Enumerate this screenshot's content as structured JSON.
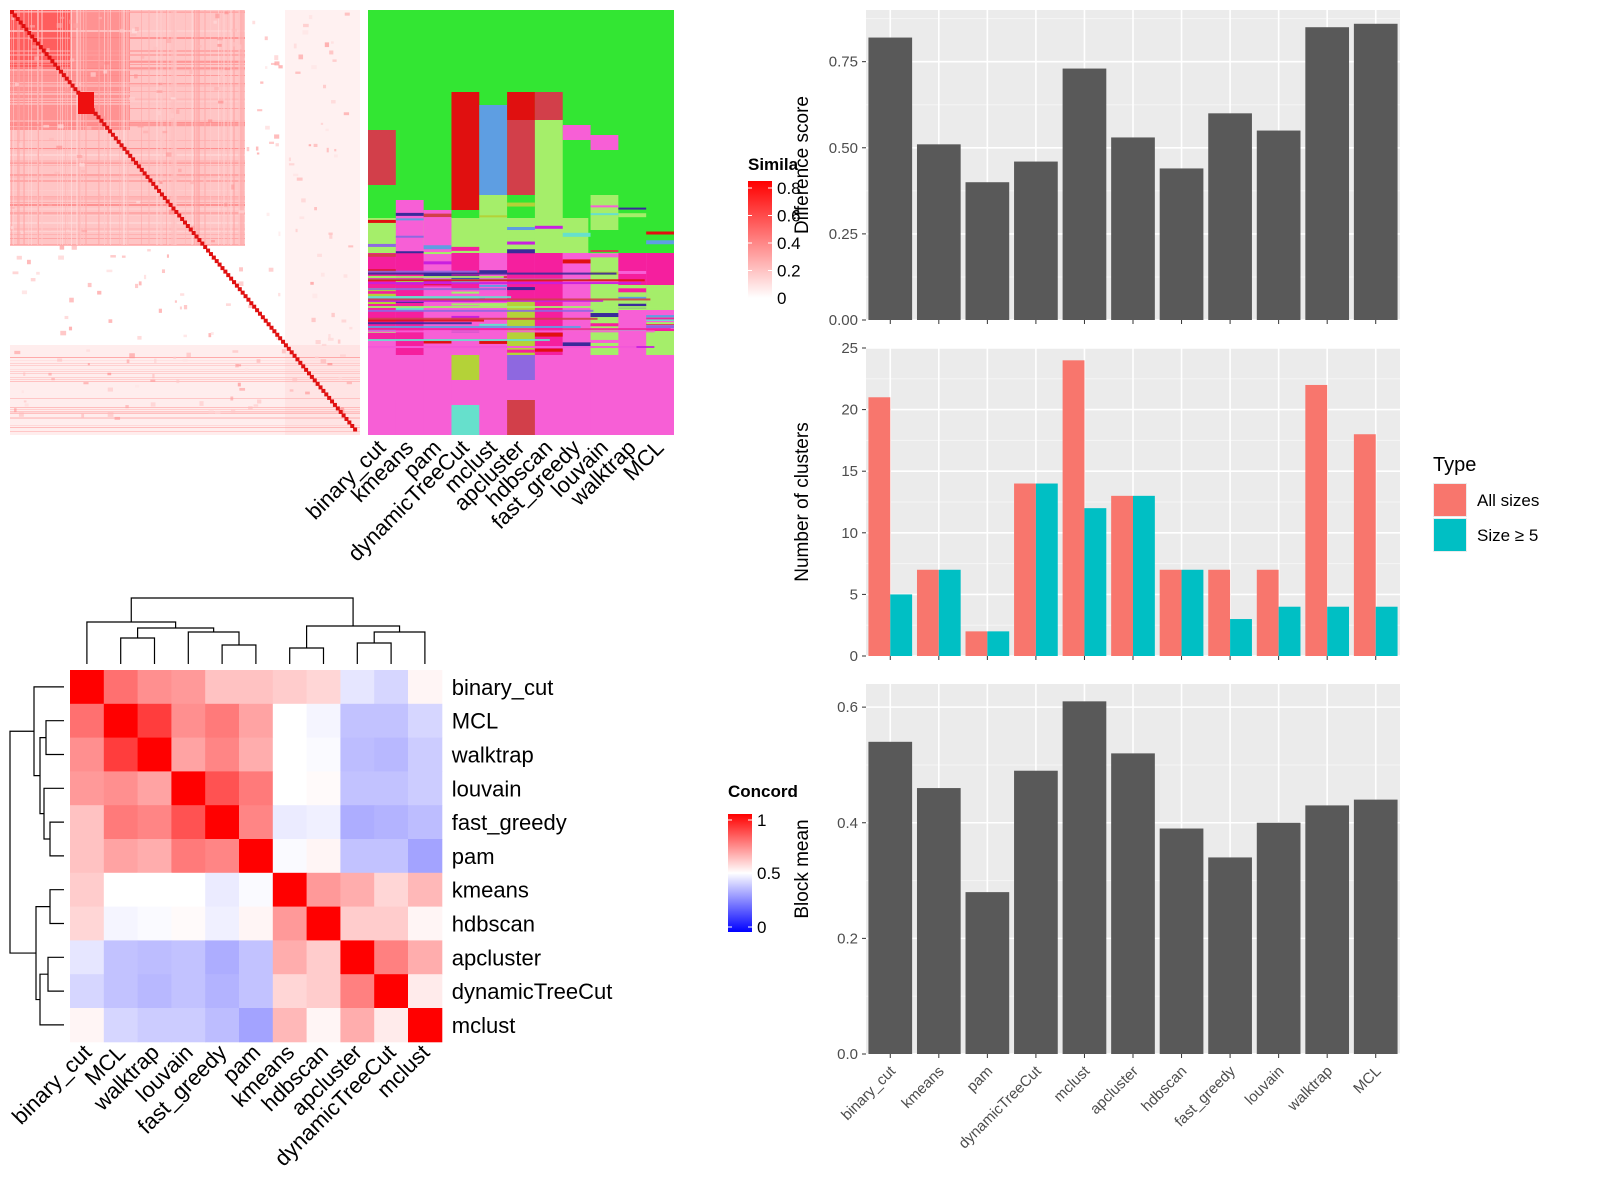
{
  "figure": {
    "panels": [
      "similarity-heatmap",
      "concordance-heatmap",
      "difference-score-bars",
      "number-of-clusters-bars",
      "block-mean-bars"
    ]
  },
  "colors": {
    "heat_red": "#ff0000",
    "bar_gray": "#595959",
    "panel_bg": "#ebebeb",
    "all_sizes": "#f8766d",
    "size_ge_5": "#00bfc4",
    "cluster_green": "#33e633",
    "cluster_pink": "#f75fd6",
    "cluster_magenta": "#f51f9e",
    "cluster_lightgreen": "#a5ee6a",
    "cluster_red": "#d23f4a",
    "cluster_blue": "#5e9ee2",
    "cluster_purple": "#8e68e0",
    "cluster_olive": "#b4d238"
  },
  "similarity": {
    "legend_title": "Simila",
    "legend_ticks": [
      "0.8",
      "0.6",
      "0.4",
      "0.2",
      "0"
    ],
    "methods": [
      "binary_cut",
      "kmeans",
      "pam",
      "dynamicTreeCut",
      "mclust",
      "apcluster",
      "hdbscan",
      "fast_greedy",
      "louvain",
      "walktrap",
      "MCL"
    ]
  },
  "concordance": {
    "legend_title": "Concord",
    "legend_ticks": [
      "1",
      "0.5",
      "0"
    ],
    "methods": [
      "binary_cut",
      "MCL",
      "walktrap",
      "louvain",
      "fast_greedy",
      "pam",
      "kmeans",
      "hdbscan",
      "apcluster",
      "dynamicTreeCut",
      "mclust"
    ]
  },
  "chart_data": [
    {
      "type": "heatmap",
      "title": "",
      "legend_title": "Concord",
      "rows": [
        "binary_cut",
        "MCL",
        "walktrap",
        "louvain",
        "fast_greedy",
        "pam",
        "kmeans",
        "hdbscan",
        "apcluster",
        "dynamicTreeCut",
        "mclust"
      ],
      "cols": [
        "binary_cut",
        "MCL",
        "walktrap",
        "louvain",
        "fast_greedy",
        "pam",
        "kmeans",
        "hdbscan",
        "apcluster",
        "dynamicTreeCut",
        "mclust"
      ],
      "values": [
        [
          1.0,
          0.78,
          0.72,
          0.7,
          0.62,
          0.62,
          0.6,
          0.58,
          0.45,
          0.42,
          0.52
        ],
        [
          0.78,
          1.0,
          0.88,
          0.72,
          0.76,
          0.68,
          0.5,
          0.48,
          0.38,
          0.38,
          0.42
        ],
        [
          0.72,
          0.88,
          1.0,
          0.68,
          0.74,
          0.66,
          0.5,
          0.49,
          0.37,
          0.36,
          0.4
        ],
        [
          0.7,
          0.72,
          0.68,
          1.0,
          0.84,
          0.76,
          0.5,
          0.51,
          0.38,
          0.38,
          0.4
        ],
        [
          0.62,
          0.76,
          0.74,
          0.84,
          1.0,
          0.74,
          0.46,
          0.47,
          0.34,
          0.35,
          0.37
        ],
        [
          0.62,
          0.68,
          0.66,
          0.76,
          0.74,
          1.0,
          0.49,
          0.52,
          0.38,
          0.38,
          0.32
        ],
        [
          0.6,
          0.5,
          0.5,
          0.5,
          0.46,
          0.49,
          1.0,
          0.7,
          0.66,
          0.58,
          0.64
        ],
        [
          0.58,
          0.48,
          0.49,
          0.51,
          0.47,
          0.52,
          0.7,
          1.0,
          0.6,
          0.6,
          0.52
        ],
        [
          0.45,
          0.38,
          0.37,
          0.38,
          0.34,
          0.38,
          0.66,
          0.6,
          1.0,
          0.75,
          0.66
        ],
        [
          0.42,
          0.38,
          0.36,
          0.38,
          0.35,
          0.38,
          0.58,
          0.6,
          0.75,
          1.0,
          0.54
        ],
        [
          0.52,
          0.42,
          0.4,
          0.4,
          0.37,
          0.32,
          0.64,
          0.52,
          0.66,
          0.54,
          1.0
        ]
      ],
      "range": [
        0,
        1
      ]
    },
    {
      "type": "bar",
      "title": "",
      "categories": [
        "binary_cut",
        "kmeans",
        "pam",
        "dynamicTreeCut",
        "mclust",
        "apcluster",
        "hdbscan",
        "fast_greedy",
        "louvain",
        "walktrap",
        "MCL"
      ],
      "values": [
        0.82,
        0.51,
        0.4,
        0.46,
        0.73,
        0.53,
        0.44,
        0.6,
        0.55,
        0.85,
        0.86
      ],
      "xlabel": "",
      "ylabel": "Difference score",
      "ylim": [
        0,
        0.9
      ],
      "yticks": [
        "0.00",
        "0.25",
        "0.50",
        "0.75"
      ],
      "grid": true
    },
    {
      "type": "bar",
      "title": "",
      "categories": [
        "binary_cut",
        "kmeans",
        "pam",
        "dynamicTreeCut",
        "mclust",
        "apcluster",
        "hdbscan",
        "fast_greedy",
        "louvain",
        "walktrap",
        "MCL"
      ],
      "series": [
        {
          "name": "All sizes",
          "values": [
            21,
            7,
            2,
            14,
            24,
            13,
            7,
            7,
            7,
            22,
            18
          ]
        },
        {
          "name": "Size ≥ 5",
          "values": [
            5,
            7,
            2,
            14,
            12,
            13,
            7,
            3,
            4,
            4,
            4
          ]
        }
      ],
      "xlabel": "",
      "ylabel": "Number of clusters",
      "ylim": [
        0,
        25
      ],
      "yticks": [
        "0",
        "5",
        "10",
        "15",
        "20",
        "25"
      ],
      "legend_title": "Type",
      "legend_position": "right",
      "grid": true
    },
    {
      "type": "bar",
      "title": "",
      "categories": [
        "binary_cut",
        "kmeans",
        "pam",
        "dynamicTreeCut",
        "mclust",
        "apcluster",
        "hdbscan",
        "fast_greedy",
        "louvain",
        "walktrap",
        "MCL"
      ],
      "values": [
        0.54,
        0.46,
        0.28,
        0.49,
        0.61,
        0.52,
        0.39,
        0.34,
        0.4,
        0.43,
        0.44
      ],
      "xlabel": "",
      "ylabel": "Block mean",
      "ylim": [
        0,
        0.64
      ],
      "yticks": [
        "0.0",
        "0.2",
        "0.4",
        "0.6"
      ],
      "grid": true
    }
  ]
}
